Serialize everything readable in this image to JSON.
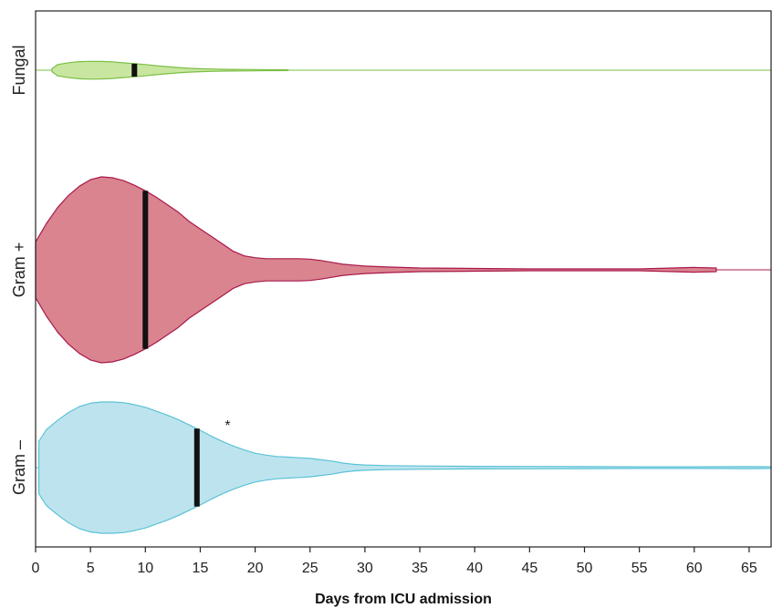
{
  "chart_data": {
    "type": "violin",
    "xlabel": "Days from ICU admission",
    "xlim": [
      0,
      67
    ],
    "xticks": [
      0,
      5,
      10,
      15,
      20,
      25,
      30,
      35,
      40,
      45,
      50,
      55,
      60,
      65
    ],
    "grid": false,
    "annotation": {
      "text": "*",
      "x": 17.5,
      "series": "Gram –"
    },
    "series": [
      {
        "name": "Fungal",
        "fill": "#c8e6a0",
        "stroke": "#7cbf45",
        "median": 9,
        "range": [
          1.5,
          23
        ],
        "density": [
          [
            1.5,
            0.12
          ],
          [
            2,
            0.47
          ],
          [
            3,
            0.63
          ],
          [
            4,
            0.72
          ],
          [
            5,
            0.75
          ],
          [
            6,
            0.74
          ],
          [
            7,
            0.7
          ],
          [
            8,
            0.62
          ],
          [
            9,
            0.55
          ],
          [
            10,
            0.48
          ],
          [
            11,
            0.38
          ],
          [
            12,
            0.3
          ],
          [
            13,
            0.22
          ],
          [
            14,
            0.16
          ],
          [
            15,
            0.12
          ],
          [
            16,
            0.1
          ],
          [
            17,
            0.08
          ],
          [
            18,
            0.07
          ],
          [
            19,
            0.06
          ],
          [
            20,
            0.05
          ],
          [
            21,
            0.04
          ],
          [
            22,
            0.035
          ],
          [
            23,
            0.03
          ]
        ]
      },
      {
        "name": "Gram +",
        "fill": "#d9848f",
        "stroke": "#a8184a",
        "median": 10,
        "range": [
          0,
          62
        ],
        "density": [
          [
            0,
            0.3
          ],
          [
            1,
            0.5
          ],
          [
            2,
            0.67
          ],
          [
            3,
            0.8
          ],
          [
            4,
            0.9
          ],
          [
            5,
            0.97
          ],
          [
            6,
            1.0
          ],
          [
            7,
            0.99
          ],
          [
            8,
            0.96
          ],
          [
            9,
            0.91
          ],
          [
            10,
            0.85
          ],
          [
            11,
            0.78
          ],
          [
            12,
            0.7
          ],
          [
            13,
            0.62
          ],
          [
            14,
            0.52
          ],
          [
            15,
            0.44
          ],
          [
            16,
            0.36
          ],
          [
            17,
            0.28
          ],
          [
            18,
            0.2
          ],
          [
            19,
            0.15
          ],
          [
            20,
            0.13
          ],
          [
            21,
            0.12
          ],
          [
            22,
            0.12
          ],
          [
            23,
            0.12
          ],
          [
            24,
            0.12
          ],
          [
            25,
            0.115
          ],
          [
            26,
            0.1
          ],
          [
            27,
            0.08
          ],
          [
            28,
            0.06
          ],
          [
            30,
            0.04
          ],
          [
            32,
            0.03
          ],
          [
            35,
            0.02
          ],
          [
            40,
            0.015
          ],
          [
            45,
            0.01
          ],
          [
            50,
            0.01
          ],
          [
            55,
            0.01
          ],
          [
            60,
            0.025
          ],
          [
            62,
            0.02
          ]
        ]
      },
      {
        "name": "Gram –",
        "fill": "#bde4ee",
        "stroke": "#5bc2d6",
        "median": 14.7,
        "range": [
          0.3,
          67
        ],
        "density": [
          [
            0.3,
            0.4
          ],
          [
            1,
            0.58
          ],
          [
            2,
            0.72
          ],
          [
            3,
            0.84
          ],
          [
            4,
            0.93
          ],
          [
            5,
            0.98
          ],
          [
            6,
            1.0
          ],
          [
            7,
            1.0
          ],
          [
            8,
            0.99
          ],
          [
            9,
            0.96
          ],
          [
            10,
            0.92
          ],
          [
            11,
            0.86
          ],
          [
            12,
            0.8
          ],
          [
            13,
            0.73
          ],
          [
            14,
            0.65
          ],
          [
            15,
            0.57
          ],
          [
            16,
            0.48
          ],
          [
            17,
            0.4
          ],
          [
            18,
            0.33
          ],
          [
            19,
            0.27
          ],
          [
            20,
            0.22
          ],
          [
            21,
            0.19
          ],
          [
            22,
            0.17
          ],
          [
            23,
            0.16
          ],
          [
            24,
            0.15
          ],
          [
            25,
            0.14
          ],
          [
            26,
            0.12
          ],
          [
            27,
            0.1
          ],
          [
            28,
            0.07
          ],
          [
            29,
            0.05
          ],
          [
            30,
            0.04
          ],
          [
            32,
            0.03
          ],
          [
            35,
            0.025
          ],
          [
            40,
            0.02
          ],
          [
            45,
            0.018
          ],
          [
            50,
            0.015
          ],
          [
            55,
            0.013
          ],
          [
            60,
            0.012
          ],
          [
            65,
            0.015
          ],
          [
            67,
            0.012
          ]
        ]
      }
    ]
  }
}
